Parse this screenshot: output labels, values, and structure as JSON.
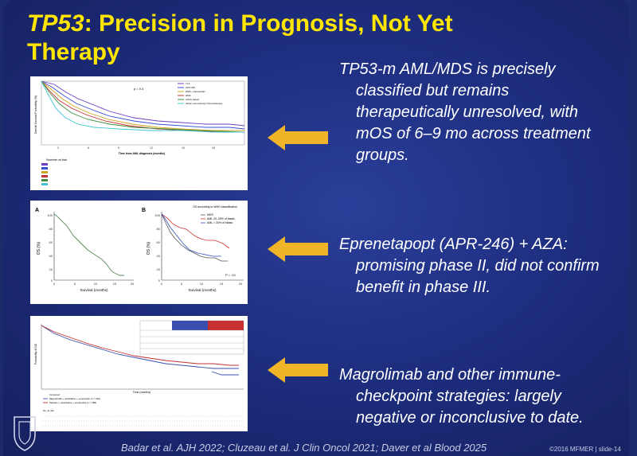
{
  "title": {
    "gene": "TP53",
    "rest_line1": ": Precision in Prognosis, Not Yet",
    "line2": "Therapy"
  },
  "bullets": [
    {
      "lines": [
        "TP53-m AML/MDS is precisely",
        "classified but remains",
        "therapeutically unresolved, with",
        "mOS of 6–9 mo across  treatment",
        "groups."
      ]
    },
    {
      "lines": [
        "Eprenetapopt (APR-246) + AZA:",
        "promising phase II, did not confirm",
        "benefit in phase III."
      ]
    },
    {
      "lines": [
        "Magrolimab and other immune-",
        "checkpoint strategies: largely",
        "negative or inconclusive to date."
      ]
    }
  ],
  "citation": "Badar et al. AJH 2022; Cluzeau et al. J Clin Oncol 2021; Daver et al Blood 2025",
  "footer": "©2016 MFMER  |  slide-14",
  "colors": {
    "title": "#ffe600",
    "arrow": "#f0b429",
    "text": "#ffffff",
    "background": "#1e2e80"
  },
  "figure1": {
    "ylabel": "Overall Survival Probability (%)",
    "xlabel": "Time from AML diagnosis (months)",
    "pvalue": "p = 0.4",
    "legend": [
      "7+3",
      "CPX-351",
      "HMA + Venetoclax",
      "HMA",
      "LDAC based",
      "Other Low intensity Chemotherapy"
    ],
    "xticks": [
      "0",
      "3",
      "6",
      "9",
      "12",
      "15",
      "18"
    ],
    "risk_title": "Number at risk"
  },
  "figure2": {
    "labelA": "A",
    "labelB": "B",
    "ylabel": "OS (%)",
    "xlabel": "Survival (months)",
    "yticks": [
      "100",
      "80",
      "60",
      "40",
      "20",
      "0"
    ],
    "xticks": [
      "0",
      "5",
      "10",
      "15",
      "20"
    ],
    "legend_title": "OS according to WHO classification",
    "legend": [
      "MDS",
      "AML 20–30% of blasts",
      "AML > 30% of blasts"
    ],
    "pval": "P = .24"
  },
  "figure3": {
    "ylabel": "Probability of OS",
    "xlabel": "Time (months)",
    "legend": [
      "Censored",
      "Magrolimab + azacitidine + venetoclax (n = 190)",
      "Placebo + azacitidine + venetoclax (n = 188)"
    ],
    "risk_title": "No. at risk"
  },
  "logo_text": "MAYO CLINIC"
}
